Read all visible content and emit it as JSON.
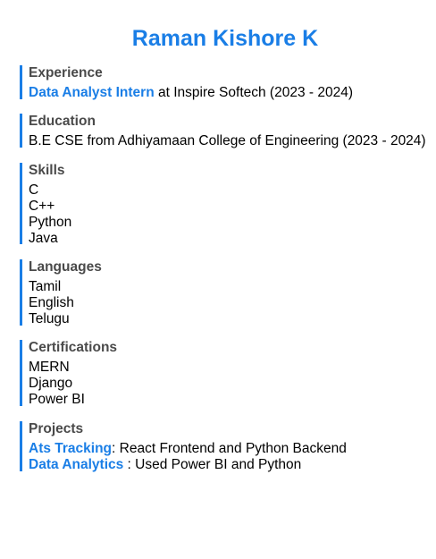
{
  "name": "Raman Kishore K",
  "accent_color": "#1a7ee6",
  "experience": {
    "title": "Experience",
    "role": "Data Analyst Intern",
    "detail": " at Inspire Softech (2023 - 2024)"
  },
  "education": {
    "title": "Education",
    "detail": "B.E CSE from Adhiyamaan College of Engineering (2023 - 2024)"
  },
  "skills": {
    "title": "Skills",
    "items": [
      "C",
      "C++",
      "Python",
      "Java"
    ]
  },
  "languages": {
    "title": "Languages",
    "items": [
      "Tamil",
      "English",
      "Telugu"
    ]
  },
  "certifications": {
    "title": "Certifications",
    "items": [
      "MERN",
      "Django",
      "Power BI"
    ]
  },
  "projects": {
    "title": "Projects",
    "items": [
      {
        "name": "Ats Tracking",
        "detail": ": React Frontend and Python Backend"
      },
      {
        "name": "Data Analytics",
        "detail": " : Used Power BI and Python"
      }
    ]
  }
}
